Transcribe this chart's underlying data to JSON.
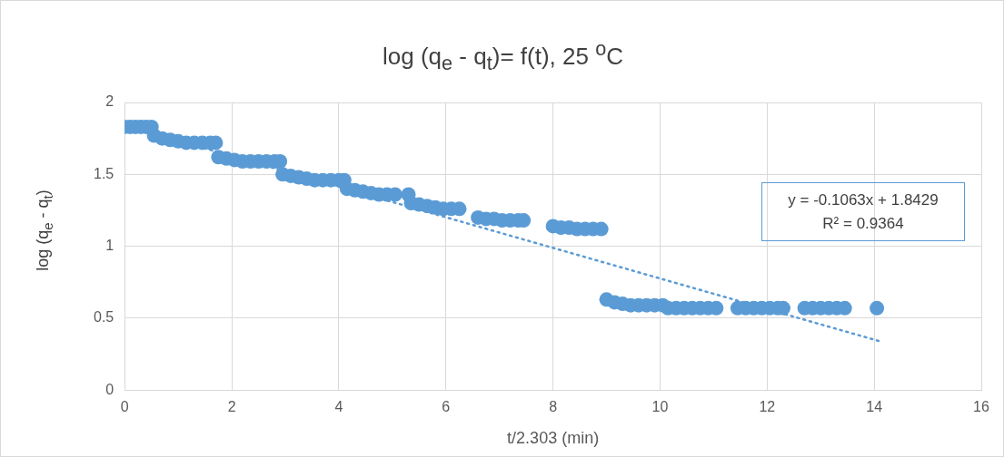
{
  "chart_data": {
    "type": "scatter",
    "title": "log (q$_{e}$ - q$_{t}$)= f(t), 25 $^{o}$C",
    "xlabel": "t/2.303 (min)",
    "ylabel": "log (q$_{e}$ - q$_{t}$)",
    "xlim": [
      0,
      16
    ],
    "xticks": [
      0,
      2,
      4,
      6,
      8,
      10,
      12,
      14,
      16
    ],
    "ylim": [
      0,
      2
    ],
    "yticks": [
      0,
      0.5,
      1,
      1.5,
      2
    ],
    "grid": true,
    "legend": false,
    "marker": "circle",
    "annotations": [
      "y = -0.1063x + 1.8429",
      "R² = 0.9364"
    ],
    "series": [
      {
        "type": "scatter",
        "color": "#5b9bd5",
        "x": [
          0,
          0.1,
          0.2,
          0.3,
          0.4,
          0.5,
          0.55,
          0.7,
          0.85,
          1.0,
          1.15,
          1.3,
          1.45,
          1.6,
          1.7,
          1.75,
          1.9,
          2.05,
          2.2,
          2.35,
          2.5,
          2.65,
          2.8,
          2.9,
          2.95,
          3.1,
          3.25,
          3.4,
          3.55,
          3.7,
          3.85,
          4.0,
          4.1,
          4.15,
          4.3,
          4.45,
          4.6,
          4.75,
          4.9,
          5.05,
          5.3,
          5.35,
          5.5,
          5.65,
          5.8,
          5.95,
          6.1,
          6.25,
          6.6,
          6.75,
          6.9,
          7.05,
          7.2,
          7.35,
          7.45,
          8.0,
          8.15,
          8.3,
          8.45,
          8.6,
          8.75,
          8.9,
          9.0,
          9.15,
          9.3,
          9.45,
          9.6,
          9.75,
          9.9,
          10.05,
          10.15,
          10.3,
          10.45,
          10.6,
          10.75,
          10.9,
          11.05,
          11.45,
          11.6,
          11.75,
          11.9,
          12.05,
          12.2,
          12.3,
          12.7,
          12.85,
          13.0,
          13.15,
          13.3,
          13.45,
          14.05
        ],
        "values": [
          1.83,
          1.83,
          1.83,
          1.83,
          1.83,
          1.83,
          1.77,
          1.75,
          1.74,
          1.73,
          1.72,
          1.72,
          1.72,
          1.72,
          1.72,
          1.62,
          1.61,
          1.6,
          1.59,
          1.59,
          1.59,
          1.59,
          1.59,
          1.59,
          1.5,
          1.49,
          1.48,
          1.47,
          1.46,
          1.46,
          1.46,
          1.46,
          1.46,
          1.4,
          1.39,
          1.38,
          1.37,
          1.36,
          1.36,
          1.36,
          1.36,
          1.3,
          1.29,
          1.28,
          1.27,
          1.26,
          1.26,
          1.26,
          1.2,
          1.19,
          1.19,
          1.18,
          1.18,
          1.18,
          1.18,
          1.14,
          1.13,
          1.13,
          1.12,
          1.12,
          1.12,
          1.12,
          0.63,
          0.61,
          0.6,
          0.59,
          0.59,
          0.59,
          0.59,
          0.59,
          0.57,
          0.57,
          0.57,
          0.57,
          0.57,
          0.57,
          0.57,
          0.57,
          0.57,
          0.57,
          0.57,
          0.57,
          0.57,
          0.57,
          0.57,
          0.57,
          0.57,
          0.57,
          0.57,
          0.57,
          0.57
        ]
      },
      {
        "type": "line",
        "color": "#5b9bd5",
        "line_style": "dotted",
        "marker": "none",
        "x": [
          0,
          14.1
        ],
        "values": [
          1.84,
          0.34
        ]
      }
    ]
  }
}
